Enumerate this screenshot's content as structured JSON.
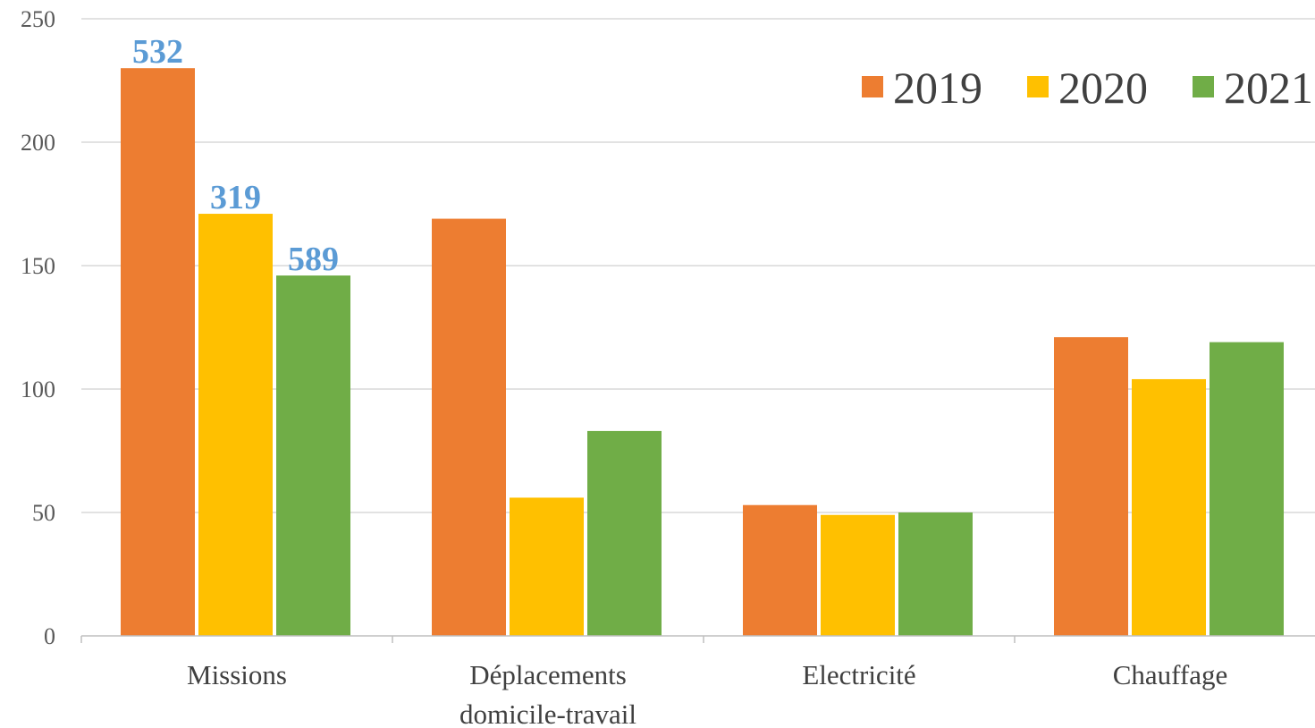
{
  "chart_data": {
    "type": "bar",
    "categories": [
      [
        "Missions"
      ],
      [
        "Déplacements",
        "domicile-travail"
      ],
      [
        "Electricité"
      ],
      [
        "Chauffage"
      ]
    ],
    "series": [
      {
        "name": "2019",
        "color": "#ED7D31",
        "values": [
          230,
          169,
          53,
          121
        ]
      },
      {
        "name": "2020",
        "color": "#FFC000",
        "values": [
          171,
          56,
          49,
          104
        ]
      },
      {
        "name": "2021",
        "color": "#70AD47",
        "values": [
          146,
          83,
          50,
          119
        ]
      }
    ],
    "data_labels": [
      {
        "series": 0,
        "category": 0,
        "text": "532"
      },
      {
        "series": 1,
        "category": 0,
        "text": "319"
      },
      {
        "series": 2,
        "category": 0,
        "text": "589"
      }
    ],
    "data_label_color": "#5B9BD5",
    "ylim": [
      0,
      250
    ],
    "yticks": [
      "0",
      "50",
      "100",
      "150",
      "200",
      "250"
    ],
    "grid": true,
    "legend_position": "top-right",
    "title": "",
    "xlabel": "",
    "ylabel": ""
  }
}
